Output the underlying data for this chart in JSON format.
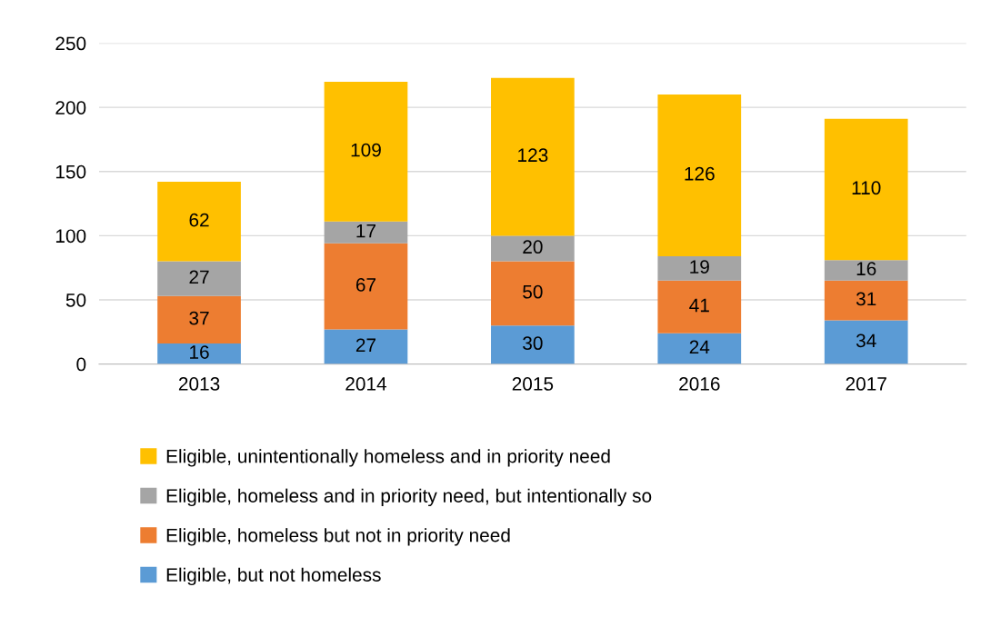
{
  "chart_data": {
    "type": "bar",
    "stacked": true,
    "categories": [
      "2013",
      "2014",
      "2015",
      "2016",
      "2017"
    ],
    "series": [
      {
        "name": "Eligible, but not homeless",
        "color": "#5b9bd5",
        "values": [
          16,
          27,
          30,
          24,
          34
        ]
      },
      {
        "name": "Eligible, homeless but not in priority need",
        "color": "#ed7d31",
        "values": [
          37,
          67,
          50,
          41,
          31
        ]
      },
      {
        "name": "Eligible, homeless and in priority need, but intentionally so",
        "color": "#a5a5a5",
        "values": [
          27,
          17,
          20,
          19,
          16
        ]
      },
      {
        "name": "Eligible, unintentionally homeless and in priority need",
        "color": "#ffc000",
        "values": [
          62,
          109,
          123,
          126,
          110
        ]
      }
    ],
    "ylim": [
      0,
      250
    ],
    "yticks": [
      0,
      50,
      100,
      150,
      200,
      250
    ],
    "grid": "y",
    "legend": "bottom",
    "data_labels": true
  }
}
